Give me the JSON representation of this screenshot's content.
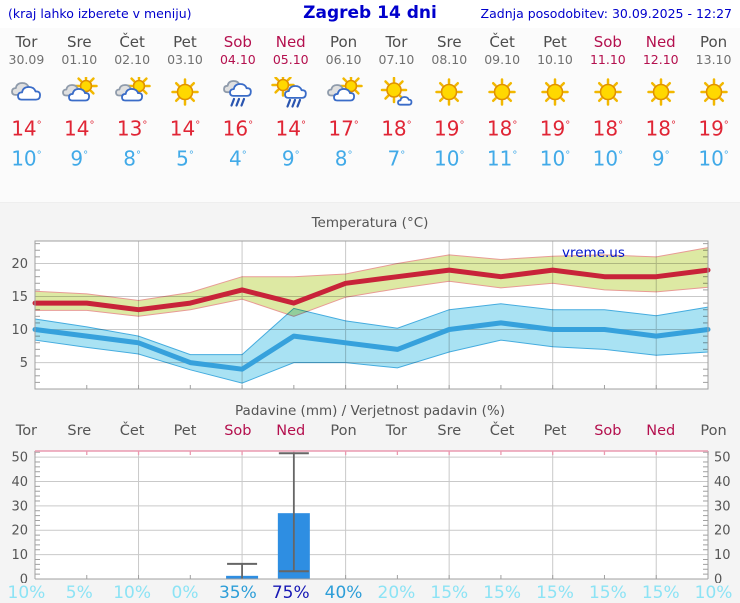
{
  "header": {
    "note": "(kraj lahko izberete v meniju)",
    "title": "Zagreb 14 dni",
    "updated": "Zadnja posodobitev: 30.09.2025 - 12:27"
  },
  "units": {
    "degree": "°"
  },
  "colors": {
    "accent": "#0000cc",
    "bg_top": "#fbfbfb",
    "bg_charts": "#f4f4f4",
    "plot_bg": "#ffffff",
    "day_gray": "#4d4d4d",
    "date_gray": "#707070",
    "weekend": "#b4104e",
    "high_red": "#e02535",
    "low_blue": "#41aae8",
    "chart_text": "#555555",
    "grid": "#c9c9c9",
    "spine": "#a0a0a0",
    "band_max_fill": "#dde9a3",
    "band_max_stroke": "#e89b95",
    "band_min_fill": "#a9e2f3",
    "band_min_stroke": "#45acdf",
    "line_max": "#c82339",
    "line_min": "#36a1dc",
    "bar_fill": "#2e8ee2",
    "whisker": "#666666",
    "precip_top": "#ea9ab0",
    "prob_light": "#8ce3f5",
    "prob_mid": "#2d9ed8",
    "prob_dark": "#1718b5",
    "watermark": "#0014cc"
  },
  "days": [
    {
      "name": "Tor",
      "date": "30.09",
      "weekend": false,
      "icon": "cloudy-icon",
      "high": "14",
      "low": "10"
    },
    {
      "name": "Sre",
      "date": "01.10",
      "weekend": false,
      "icon": "sun-cloud-icon",
      "high": "14",
      "low": "9"
    },
    {
      "name": "Čet",
      "date": "02.10",
      "weekend": false,
      "icon": "sun-cloud-icon",
      "high": "13",
      "low": "8"
    },
    {
      "name": "Pet",
      "date": "03.10",
      "weekend": false,
      "icon": "sun-icon",
      "high": "14",
      "low": "5"
    },
    {
      "name": "Sob",
      "date": "04.10",
      "weekend": true,
      "icon": "rain-icon",
      "high": "16",
      "low": "4"
    },
    {
      "name": "Ned",
      "date": "05.10",
      "weekend": true,
      "icon": "sun-rain-icon",
      "high": "14",
      "low": "9"
    },
    {
      "name": "Pon",
      "date": "06.10",
      "weekend": false,
      "icon": "sun-cloud-icon",
      "high": "17",
      "low": "8"
    },
    {
      "name": "Tor",
      "date": "07.10",
      "weekend": false,
      "icon": "sun-small-cloud-icon",
      "high": "18",
      "low": "7"
    },
    {
      "name": "Sre",
      "date": "08.10",
      "weekend": false,
      "icon": "sun-icon",
      "high": "19",
      "low": "10"
    },
    {
      "name": "Čet",
      "date": "09.10",
      "weekend": false,
      "icon": "sun-icon",
      "high": "18",
      "low": "11"
    },
    {
      "name": "Pet",
      "date": "10.10",
      "weekend": false,
      "icon": "sun-icon",
      "high": "19",
      "low": "10"
    },
    {
      "name": "Sob",
      "date": "11.10",
      "weekend": true,
      "icon": "sun-icon",
      "high": "18",
      "low": "10"
    },
    {
      "name": "Ned",
      "date": "12.10",
      "weekend": true,
      "icon": "sun-icon",
      "high": "18",
      "low": "9"
    },
    {
      "name": "Pon",
      "date": "13.10",
      "weekend": false,
      "icon": "sun-icon",
      "high": "19",
      "low": "10"
    }
  ],
  "chart_data": [
    {
      "type": "area",
      "title": "Temperatura (°C)",
      "watermark": "vreme.us",
      "categories": [
        "Tor",
        "Sre",
        "Čet",
        "Pet",
        "Sob",
        "Ned",
        "Pon",
        "Tor",
        "Sre",
        "Čet",
        "Pet",
        "Sob",
        "Ned",
        "Pon"
      ],
      "ylim": [
        1,
        23.4
      ],
      "yticks": [
        5,
        10,
        15,
        20
      ],
      "grid": "on",
      "series": [
        {
          "name": "max_upper",
          "values": [
            15.8,
            15.4,
            14.4,
            15.6,
            18.0,
            18.0,
            18.4,
            20.0,
            21.3,
            20.6,
            21.1,
            21.3,
            21.0,
            22.4
          ]
        },
        {
          "name": "max",
          "values": [
            14,
            14,
            13,
            14,
            16,
            14,
            17,
            18,
            19,
            18,
            19,
            18,
            18,
            19
          ]
        },
        {
          "name": "max_lower",
          "values": [
            12.9,
            12.9,
            12.0,
            13.0,
            14.6,
            12.0,
            14.9,
            16.2,
            17.3,
            16.3,
            17.0,
            16.0,
            15.7,
            16.4
          ]
        },
        {
          "name": "min_upper",
          "values": [
            11.6,
            10.4,
            9.0,
            6.2,
            6.2,
            13.2,
            11.3,
            10.2,
            13.0,
            13.9,
            13.0,
            13.0,
            12.1,
            13.4
          ]
        },
        {
          "name": "min",
          "values": [
            10,
            9,
            8,
            5,
            4,
            9,
            8,
            7,
            10,
            11,
            10,
            10,
            9,
            10
          ]
        },
        {
          "name": "min_lower",
          "values": [
            8.4,
            7.3,
            6.3,
            3.9,
            1.9,
            5.0,
            5.0,
            4.2,
            6.6,
            8.4,
            7.4,
            7.0,
            6.1,
            6.6
          ]
        }
      ]
    },
    {
      "type": "bar",
      "title": "Padavine (mm) / Verjetnost padavin (%)",
      "categories": [
        "Tor",
        "Sre",
        "Čet",
        "Pet",
        "Sob",
        "Ned",
        "Pon",
        "Tor",
        "Sre",
        "Čet",
        "Pet",
        "Sob",
        "Ned",
        "Pon"
      ],
      "ylim": [
        0,
        52.5
      ],
      "yticks": [
        0,
        10,
        20,
        30,
        40,
        50
      ],
      "grid": "on",
      "values": [
        0,
        0,
        0,
        0,
        1.3,
        27,
        0,
        0,
        0,
        0,
        0,
        0,
        0,
        0
      ],
      "whiskers": [
        null,
        null,
        null,
        null,
        [
          0,
          6.2
        ],
        [
          3.2,
          51.6
        ],
        null,
        null,
        null,
        null,
        null,
        null,
        null,
        null
      ],
      "probabilities": [
        "10%",
        "5%",
        "10%",
        "0%",
        "35%",
        "75%",
        "40%",
        "20%",
        "15%",
        "15%",
        "15%",
        "15%",
        "15%",
        "10%"
      ]
    }
  ]
}
